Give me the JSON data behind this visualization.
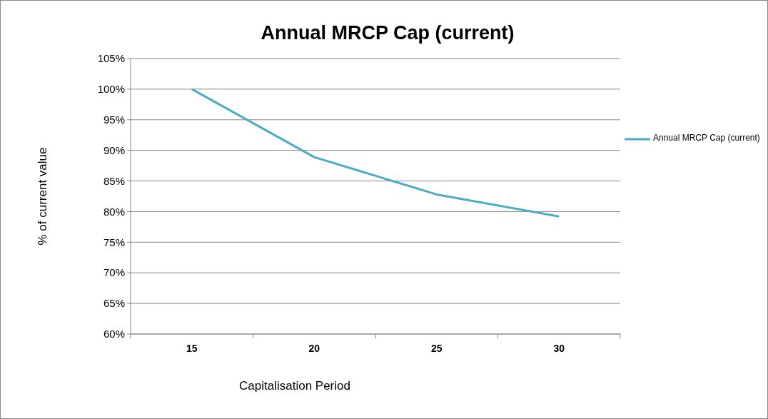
{
  "chart_data": {
    "type": "line",
    "title": "Annual MRCP Cap (current)",
    "xlabel": "Capitalisation Period",
    "ylabel": "% of current value",
    "categories": [
      "15",
      "20",
      "25",
      "30"
    ],
    "series": [
      {
        "name": "Annual MRCP Cap (current)",
        "color": "#4bacc6",
        "values": [
          100,
          88.9,
          82.8,
          79.2
        ]
      }
    ],
    "ylim": [
      60,
      105
    ],
    "yticks": [
      {
        "value": 60,
        "label": "60%"
      },
      {
        "value": 65,
        "label": "65%"
      },
      {
        "value": 70,
        "label": "70%"
      },
      {
        "value": 75,
        "label": "75%"
      },
      {
        "value": 80,
        "label": "80%"
      },
      {
        "value": 85,
        "label": "85%"
      },
      {
        "value": 90,
        "label": "90%"
      },
      {
        "value": 95,
        "label": "95%"
      },
      {
        "value": 100,
        "label": "100%"
      },
      {
        "value": 105,
        "label": "105%"
      }
    ],
    "grid": "y",
    "legend": "right",
    "marker": "none"
  }
}
